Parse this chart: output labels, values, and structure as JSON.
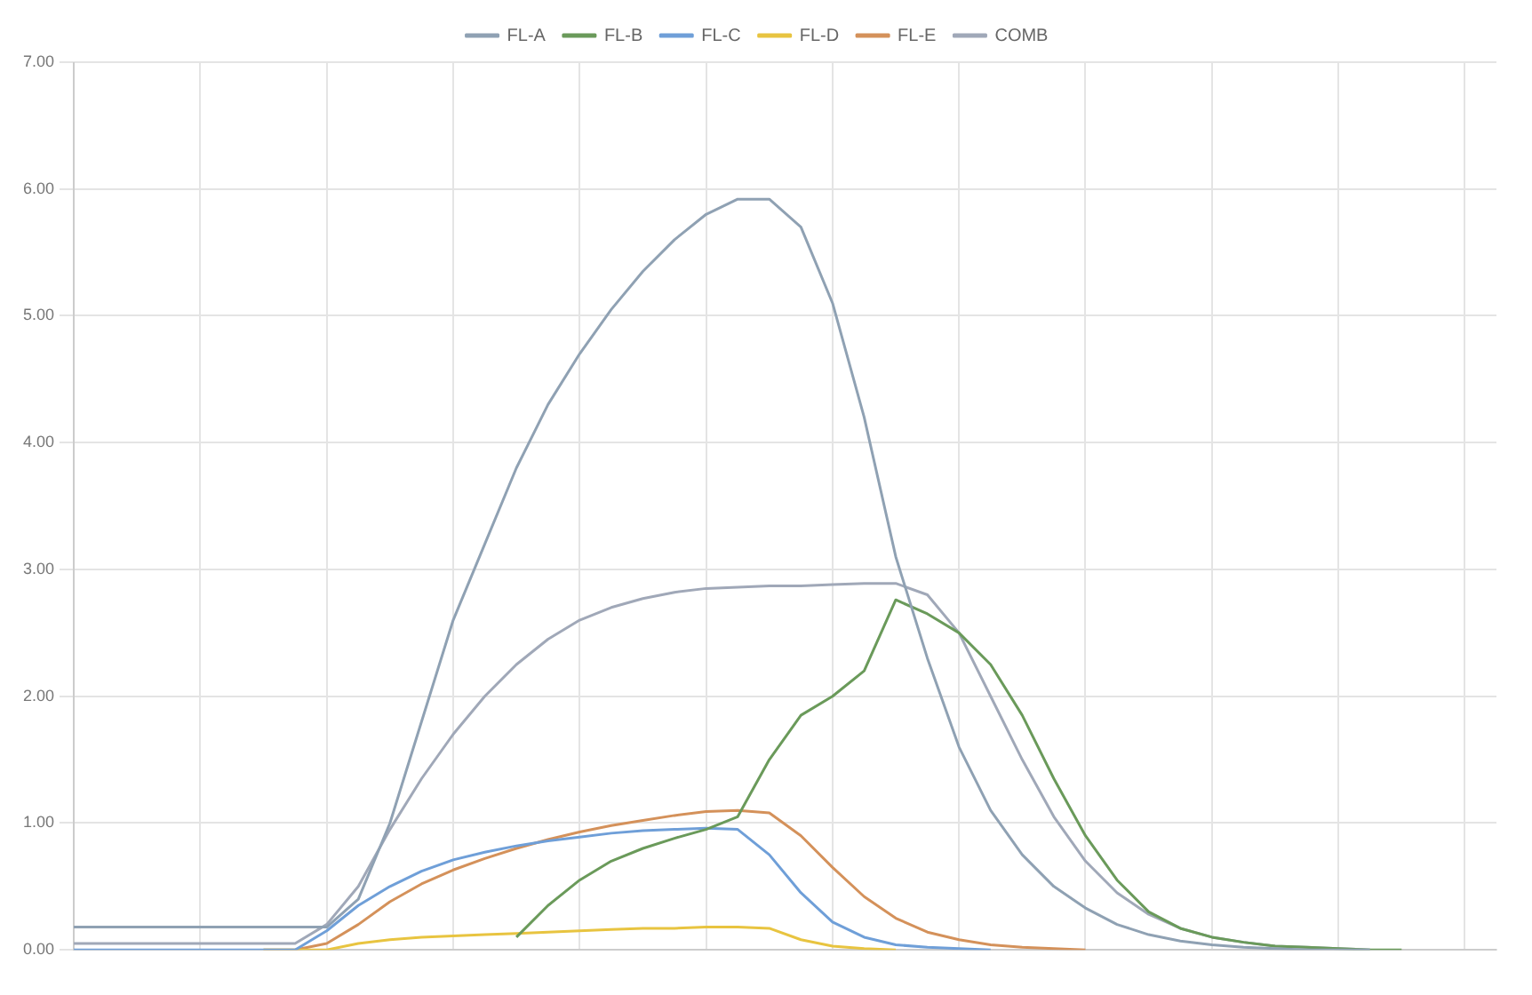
{
  "chart_data": {
    "type": "line",
    "categories": [
      null,
      null,
      null,
      null,
      null,
      null,
      null,
      null,
      null,
      null,
      null,
      null,
      null,
      null,
      null,
      null,
      null,
      null,
      null,
      null,
      null,
      null,
      null,
      null,
      null,
      null,
      null,
      null,
      null,
      null,
      null,
      null,
      null,
      null,
      null,
      null,
      null,
      null,
      null,
      null,
      null,
      null,
      null,
      null,
      null,
      null
    ],
    "series": [
      {
        "name": "FL-A",
        "color": "#8fa1b3",
        "values": [
          0.18,
          0.18,
          0.18,
          0.18,
          0.18,
          0.18,
          0.18,
          0.18,
          0.18,
          0.4,
          1.0,
          1.8,
          2.6,
          3.2,
          3.8,
          4.3,
          4.7,
          5.05,
          5.35,
          5.6,
          5.8,
          5.92,
          5.92,
          5.7,
          5.1,
          4.2,
          3.1,
          2.3,
          1.6,
          1.1,
          0.75,
          0.5,
          0.33,
          0.2,
          0.12,
          0.07,
          0.04,
          0.02,
          0.01,
          0,
          0,
          0,
          null,
          null,
          null,
          null
        ]
      },
      {
        "name": "FL-B",
        "color": "#6a9a5a",
        "values": [
          null,
          null,
          null,
          null,
          null,
          null,
          null,
          null,
          null,
          null,
          null,
          null,
          null,
          null,
          0.1,
          0.35,
          0.55,
          0.7,
          0.8,
          0.88,
          0.95,
          1.05,
          1.5,
          1.85,
          2.0,
          2.2,
          2.76,
          2.65,
          2.5,
          2.25,
          1.85,
          1.35,
          0.9,
          0.55,
          0.3,
          0.17,
          0.1,
          0.06,
          0.03,
          0.02,
          0.01,
          0,
          0,
          null,
          null,
          null
        ]
      },
      {
        "name": "FL-C",
        "color": "#6f9fd8",
        "values": [
          0,
          0,
          0,
          0,
          0,
          0,
          0,
          0,
          0.15,
          0.35,
          0.5,
          0.62,
          0.71,
          0.77,
          0.82,
          0.86,
          0.89,
          0.92,
          0.94,
          0.95,
          0.96,
          0.95,
          0.75,
          0.45,
          0.22,
          0.1,
          0.04,
          0.02,
          0.01,
          0,
          null,
          null,
          null,
          null,
          null,
          null,
          null,
          null,
          null,
          null,
          null,
          null,
          null,
          null,
          null,
          null
        ]
      },
      {
        "name": "FL-D",
        "color": "#e8c440",
        "values": [
          null,
          null,
          null,
          null,
          null,
          null,
          0,
          0,
          0,
          0.05,
          0.08,
          0.1,
          0.11,
          0.12,
          0.13,
          0.14,
          0.15,
          0.16,
          0.17,
          0.17,
          0.18,
          0.18,
          0.17,
          0.08,
          0.03,
          0.01,
          0,
          null,
          null,
          null,
          null,
          null,
          null,
          null,
          null,
          null,
          null,
          null,
          null,
          null,
          null,
          null,
          null,
          null,
          null,
          null
        ]
      },
      {
        "name": "FL-E",
        "color": "#d4915a",
        "values": [
          null,
          null,
          null,
          null,
          null,
          null,
          0,
          0,
          0.05,
          0.2,
          0.38,
          0.52,
          0.63,
          0.72,
          0.8,
          0.87,
          0.93,
          0.98,
          1.02,
          1.06,
          1.09,
          1.1,
          1.08,
          0.9,
          0.65,
          0.42,
          0.25,
          0.14,
          0.08,
          0.04,
          0.02,
          0.01,
          0,
          null,
          null,
          null,
          null,
          null,
          null,
          null,
          null,
          null,
          null,
          null,
          null,
          null
        ]
      },
      {
        "name": "COMB",
        "color": "#a0a8b8",
        "values": [
          0.05,
          0.05,
          0.05,
          0.05,
          0.05,
          0.05,
          0.05,
          0.05,
          0.2,
          0.5,
          0.95,
          1.35,
          1.7,
          2.0,
          2.25,
          2.45,
          2.6,
          2.7,
          2.77,
          2.82,
          2.85,
          2.86,
          2.87,
          2.87,
          2.88,
          2.89,
          2.89,
          2.8,
          2.5,
          2.0,
          1.5,
          1.05,
          0.7,
          0.45,
          0.28,
          0.17,
          0.1,
          0.06,
          0.03,
          0.02,
          0.01,
          0,
          null,
          null,
          null,
          null
        ]
      }
    ],
    "ylim": [
      0,
      7
    ],
    "yticks": [
      {
        "value": 0,
        "label": "0.00"
      },
      {
        "value": 1,
        "label": "1.00"
      },
      {
        "value": 2,
        "label": "2.00"
      },
      {
        "value": 3,
        "label": "3.00"
      },
      {
        "value": 4,
        "label": "4.00"
      },
      {
        "value": 5,
        "label": "5.00"
      },
      {
        "value": 6,
        "label": "6.00"
      },
      {
        "value": 7,
        "label": "7.00"
      }
    ],
    "grid": true,
    "legend": "top",
    "marker": "none",
    "line_style": "solid"
  }
}
